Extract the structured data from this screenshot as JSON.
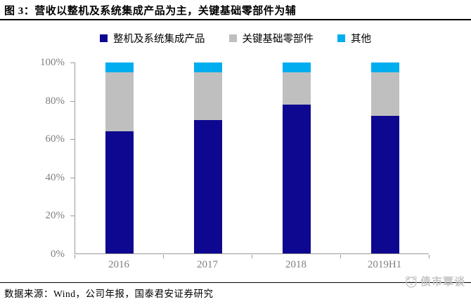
{
  "figure": {
    "title": "图 3：营收以整机及系统集成产品为主，关键基础零部件为辅",
    "source": "数据来源：Wind，公司年报，国泰君安证券研究",
    "watermark": "债市覃谈"
  },
  "colors": {
    "series_main": "#0d088f",
    "series_gray": "#bfbfbf",
    "series_other": "#00aeef",
    "axis": "#9a9a9a",
    "tick_label": "#7f7f7f",
    "watermark": "#c6c6c6",
    "title_text": "#000000"
  },
  "chart_data": {
    "type": "bar",
    "stacked": true,
    "unit": "percent",
    "categories": [
      "2016",
      "2017",
      "2018",
      "2019H1"
    ],
    "series": [
      {
        "name": "整机及系统集成产品",
        "color": "#0d088f",
        "values": [
          64,
          70,
          78,
          72
        ]
      },
      {
        "name": "关键基础零部件",
        "color": "#bfbfbf",
        "values": [
          31,
          25,
          17,
          23
        ]
      },
      {
        "name": "其他",
        "color": "#00aeef",
        "values": [
          5,
          5,
          5,
          5
        ]
      }
    ],
    "title": "营收以整机及系统集成产品为主，关键基础零部件为辅",
    "xlabel": "",
    "ylabel": "",
    "ylim": [
      0,
      100
    ],
    "yticks": [
      "0%",
      "20%",
      "40%",
      "60%",
      "80%",
      "100%"
    ],
    "legend_position": "top",
    "grid": false
  }
}
